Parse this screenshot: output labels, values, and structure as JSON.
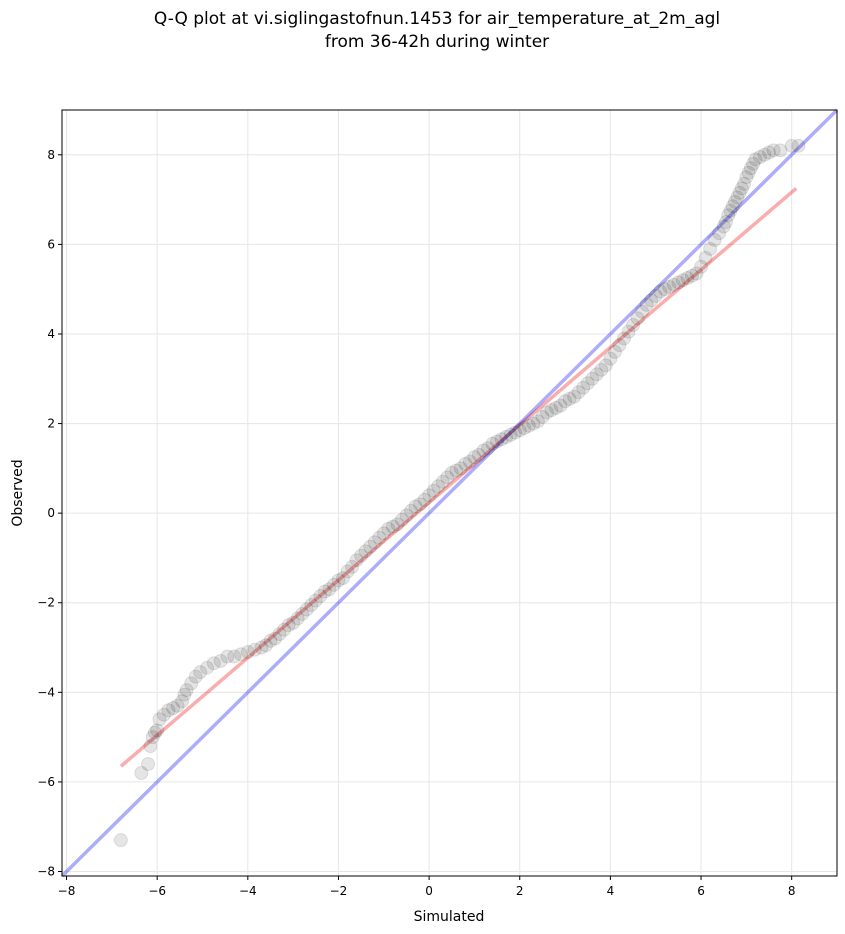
{
  "chart_data": {
    "type": "scatter",
    "title_lines": [
      "Q-Q plot at vi.siglingastofnun.1453 for air_temperature_at_2m_agl",
      "from 36-42h during winter"
    ],
    "xlabel": "Simulated",
    "ylabel": "Observed",
    "xlim": [
      -8.1,
      9.0
    ],
    "ylim": [
      -8.1,
      9.0
    ],
    "x_ticks": [
      -8,
      -6,
      -4,
      -2,
      0,
      2,
      4,
      6,
      8
    ],
    "y_ticks": [
      -8,
      -6,
      -4,
      -2,
      0,
      2,
      4,
      6,
      8
    ],
    "x_tick_labels": [
      "−8",
      "−6",
      "−4",
      "−2",
      "0",
      "2",
      "4",
      "6",
      "8"
    ],
    "y_tick_labels": [
      "−8",
      "−6",
      "−4",
      "−2",
      "0",
      "2",
      "4",
      "6",
      "8"
    ],
    "grid": true,
    "colors": {
      "points": "#000000",
      "identity_line": "#0000ee",
      "fit_line": "#ee0000",
      "grid": "#e6e6e6"
    },
    "identity_line": {
      "x": [
        -8.1,
        9.0
      ],
      "y": [
        -8.1,
        9.0
      ]
    },
    "fit_line": {
      "x": [
        -6.8,
        8.1
      ],
      "y": [
        -5.65,
        7.25
      ]
    },
    "points": {
      "x": [
        -6.8,
        -6.35,
        -6.2,
        -6.15,
        -6.1,
        -6.05,
        -6.0,
        -5.95,
        -5.85,
        -5.75,
        -5.65,
        -5.55,
        -5.45,
        -5.4,
        -5.35,
        -5.25,
        -5.15,
        -5.05,
        -4.9,
        -4.75,
        -4.6,
        -4.45,
        -4.3,
        -4.15,
        -4.0,
        -3.85,
        -3.7,
        -3.6,
        -3.5,
        -3.4,
        -3.3,
        -3.2,
        -3.1,
        -3.0,
        -2.9,
        -2.8,
        -2.7,
        -2.6,
        -2.5,
        -2.4,
        -2.3,
        -2.2,
        -2.1,
        -2.0,
        -1.9,
        -1.8,
        -1.7,
        -1.6,
        -1.5,
        -1.4,
        -1.3,
        -1.2,
        -1.1,
        -1.0,
        -0.9,
        -0.8,
        -0.7,
        -0.6,
        -0.5,
        -0.4,
        -0.3,
        -0.2,
        -0.1,
        0.0,
        0.1,
        0.2,
        0.3,
        0.4,
        0.5,
        0.6,
        0.7,
        0.8,
        0.9,
        1.0,
        1.1,
        1.2,
        1.3,
        1.4,
        1.5,
        1.6,
        1.7,
        1.8,
        1.9,
        2.0,
        2.1,
        2.2,
        2.3,
        2.4,
        2.5,
        2.6,
        2.7,
        2.8,
        2.9,
        3.0,
        3.1,
        3.2,
        3.3,
        3.4,
        3.5,
        3.6,
        3.7,
        3.8,
        3.9,
        4.0,
        4.1,
        4.2,
        4.3,
        4.4,
        4.5,
        4.6,
        4.7,
        4.8,
        4.9,
        5.0,
        5.1,
        5.2,
        5.3,
        5.4,
        5.5,
        5.6,
        5.7,
        5.8,
        5.9,
        6.0,
        6.1,
        6.2,
        6.3,
        6.4,
        6.5,
        6.55,
        6.6,
        6.65,
        6.7,
        6.75,
        6.8,
        6.85,
        6.9,
        6.95,
        7.0,
        7.05,
        7.1,
        7.15,
        7.2,
        7.3,
        7.4,
        7.5,
        7.6,
        7.75,
        8.0,
        8.15
      ],
      "y": [
        -7.3,
        -5.8,
        -5.6,
        -5.2,
        -5.0,
        -4.9,
        -4.85,
        -4.6,
        -4.5,
        -4.4,
        -4.35,
        -4.3,
        -4.2,
        -4.05,
        -3.95,
        -3.8,
        -3.65,
        -3.55,
        -3.45,
        -3.35,
        -3.3,
        -3.2,
        -3.2,
        -3.15,
        -3.1,
        -3.05,
        -3.0,
        -2.95,
        -2.85,
        -2.8,
        -2.7,
        -2.6,
        -2.5,
        -2.45,
        -2.35,
        -2.25,
        -2.15,
        -2.05,
        -1.95,
        -1.85,
        -1.75,
        -1.7,
        -1.6,
        -1.5,
        -1.45,
        -1.3,
        -1.2,
        -1.05,
        -0.95,
        -0.85,
        -0.75,
        -0.65,
        -0.55,
        -0.45,
        -0.35,
        -0.3,
        -0.25,
        -0.15,
        -0.05,
        0.05,
        0.15,
        0.2,
        0.3,
        0.4,
        0.5,
        0.6,
        0.7,
        0.8,
        0.9,
        0.95,
        1.0,
        1.1,
        1.15,
        1.25,
        1.3,
        1.4,
        1.45,
        1.55,
        1.6,
        1.65,
        1.7,
        1.75,
        1.8,
        1.85,
        1.9,
        1.95,
        2.0,
        2.05,
        2.15,
        2.25,
        2.3,
        2.35,
        2.4,
        2.5,
        2.55,
        2.6,
        2.7,
        2.8,
        2.9,
        3.0,
        3.1,
        3.2,
        3.3,
        3.45,
        3.6,
        3.75,
        3.9,
        4.05,
        4.2,
        4.35,
        4.5,
        4.65,
        4.75,
        4.85,
        4.95,
        5.0,
        5.05,
        5.1,
        5.15,
        5.2,
        5.25,
        5.3,
        5.35,
        5.5,
        5.7,
        5.9,
        6.1,
        6.25,
        6.4,
        6.5,
        6.65,
        6.75,
        6.85,
        6.95,
        7.05,
        7.15,
        7.25,
        7.35,
        7.5,
        7.6,
        7.7,
        7.8,
        7.9,
        7.95,
        8.0,
        8.05,
        8.1,
        8.1,
        8.2,
        8.2
      ]
    }
  }
}
